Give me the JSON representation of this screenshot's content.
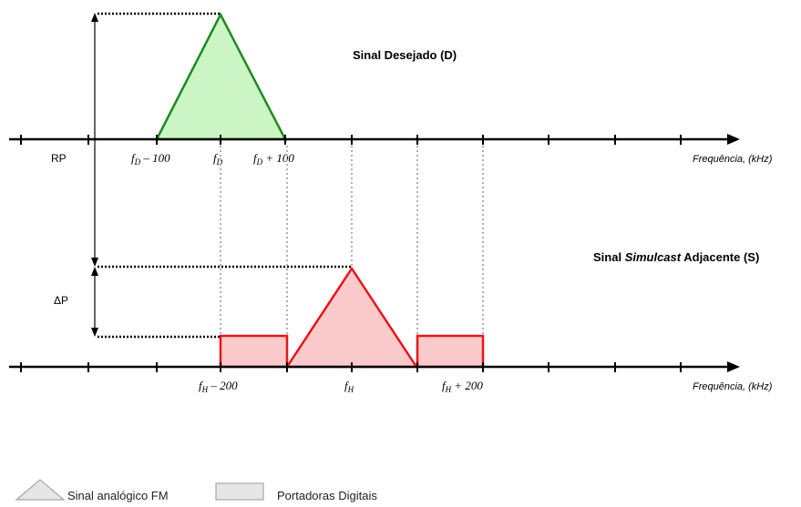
{
  "top": {
    "title": "Sinal Desejado (D)",
    "axis_label": "Frequência, (kHz)",
    "ticks": {
      "f_minus": {
        "base": "f",
        "sub": "D",
        "suffix": " – 100"
      },
      "f_center": {
        "base": "f",
        "sub": "D",
        "suffix": ""
      },
      "f_plus": {
        "base": "f",
        "sub": "D",
        "suffix": " + 100"
      }
    },
    "color": "#1e8a1e",
    "fill": "#ccf5c6"
  },
  "bottom": {
    "title_prefix": "Sinal ",
    "title_italic": "Simulcast",
    "title_suffix": " Adjacente (S)",
    "axis_label": "Frequência, (kHz)",
    "ticks": {
      "f_minus": {
        "base": "f",
        "sub": "H",
        "suffix": " – 200"
      },
      "f_center": {
        "base": "f",
        "sub": "H",
        "suffix": ""
      },
      "f_plus": {
        "base": "f",
        "sub": "H",
        "suffix": " + 200"
      }
    },
    "color": "#e8141c",
    "fill": "#fbcaca"
  },
  "labels": {
    "rp": "RP",
    "dp": "ΔP"
  },
  "legend": {
    "analog": "Sinal analógico FM",
    "digital": "Portadoras Digitais",
    "stroke": "#a8a8a8",
    "fill": "#e6e6e6"
  }
}
